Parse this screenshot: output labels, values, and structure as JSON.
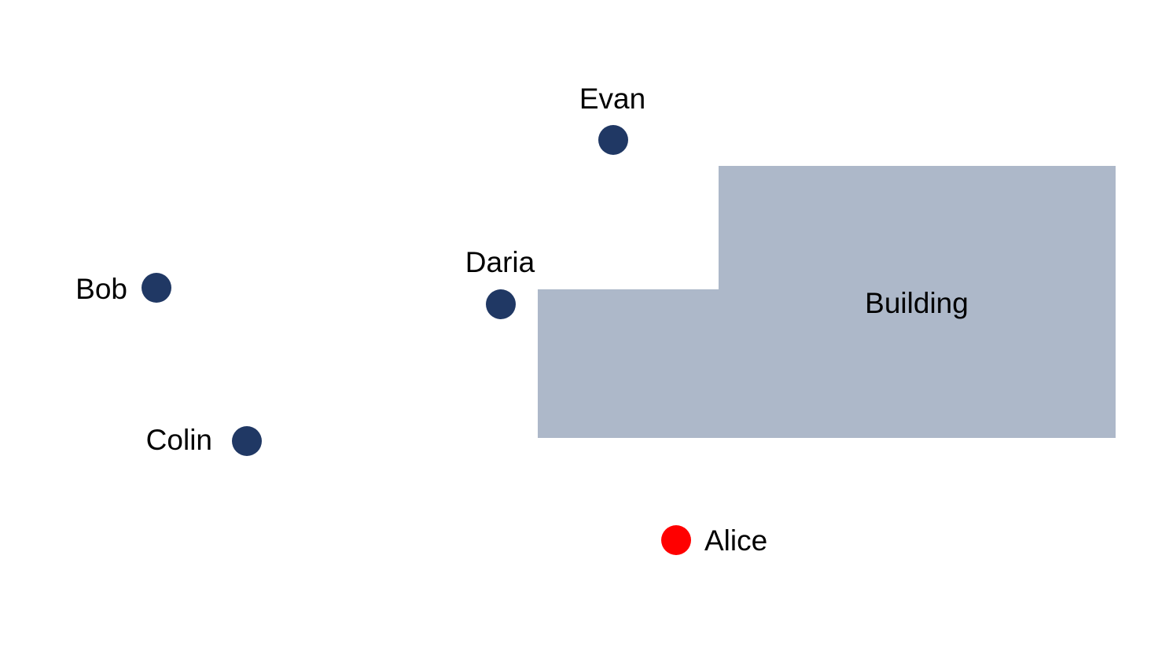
{
  "colors": {
    "background": "#ffffff",
    "building_fill": "#adb8c9",
    "person_marker": "#203864",
    "highlight_marker": "#ff0000",
    "text": "#000000"
  },
  "building": {
    "label": "Building"
  },
  "people": [
    {
      "name": "Evan",
      "marker": "navy-circle"
    },
    {
      "name": "Daria",
      "marker": "navy-circle"
    },
    {
      "name": "Bob",
      "marker": "navy-circle"
    },
    {
      "name": "Colin",
      "marker": "navy-circle"
    },
    {
      "name": "Alice",
      "marker": "red-circle"
    }
  ]
}
